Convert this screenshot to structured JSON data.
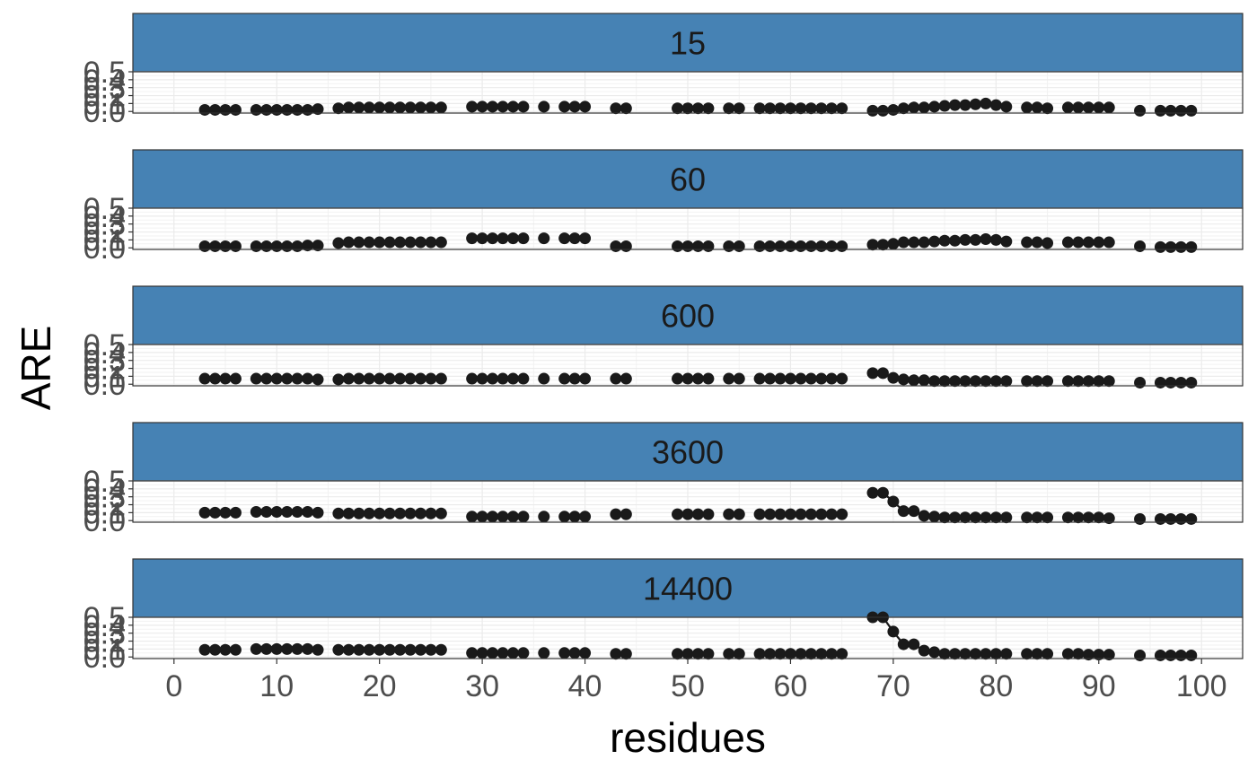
{
  "chart_data": {
    "type": "scatter",
    "xlabel": "residues",
    "ylabel": "ARE",
    "x_ticks": [
      0,
      10,
      20,
      30,
      40,
      50,
      60,
      70,
      80,
      90,
      100
    ],
    "y_ticks": [
      "0.0",
      "0.1",
      "0.2",
      "0.3",
      "0.4",
      "0.5"
    ],
    "y_ticks_values": [
      0.0,
      0.1,
      0.2,
      0.3,
      0.4,
      0.5
    ],
    "xlim": [
      -4,
      104
    ],
    "ylim": [
      -0.02,
      0.5
    ],
    "grid": true,
    "strip_fill": "#4682b4",
    "point_color": "#1a1a1a",
    "residues": [
      3,
      4,
      5,
      6,
      8,
      9,
      10,
      11,
      12,
      13,
      14,
      16,
      17,
      18,
      19,
      20,
      21,
      22,
      23,
      24,
      25,
      26,
      29,
      30,
      31,
      32,
      33,
      34,
      36,
      38,
      39,
      40,
      43,
      44,
      49,
      50,
      51,
      52,
      54,
      55,
      57,
      58,
      59,
      60,
      61,
      62,
      63,
      64,
      65,
      68,
      69,
      70,
      71,
      72,
      73,
      74,
      75,
      76,
      77,
      78,
      79,
      80,
      81,
      83,
      84,
      85,
      87,
      88,
      89,
      90,
      91,
      94,
      96,
      97,
      98,
      99
    ],
    "panels": [
      {
        "label": "15",
        "values": [
          0.02,
          0.02,
          0.02,
          0.02,
          0.02,
          0.02,
          0.02,
          0.02,
          0.02,
          0.02,
          0.03,
          0.04,
          0.05,
          0.05,
          0.05,
          0.05,
          0.05,
          0.05,
          0.05,
          0.05,
          0.05,
          0.05,
          0.06,
          0.06,
          0.06,
          0.06,
          0.06,
          0.06,
          0.06,
          0.06,
          0.06,
          0.06,
          0.04,
          0.04,
          0.04,
          0.04,
          0.04,
          0.04,
          0.04,
          0.04,
          0.04,
          0.04,
          0.04,
          0.04,
          0.04,
          0.04,
          0.04,
          0.04,
          0.04,
          0.01,
          0.01,
          0.02,
          0.04,
          0.05,
          0.05,
          0.06,
          0.07,
          0.08,
          0.08,
          0.09,
          0.1,
          0.08,
          0.06,
          0.05,
          0.05,
          0.04,
          0.05,
          0.05,
          0.05,
          0.05,
          0.05,
          0.01,
          0.01,
          0.01,
          0.01,
          0.01
        ]
      },
      {
        "label": "60",
        "values": [
          0.02,
          0.02,
          0.02,
          0.02,
          0.02,
          0.02,
          0.02,
          0.02,
          0.02,
          0.03,
          0.03,
          0.06,
          0.07,
          0.07,
          0.07,
          0.07,
          0.07,
          0.07,
          0.07,
          0.07,
          0.07,
          0.07,
          0.12,
          0.12,
          0.12,
          0.12,
          0.12,
          0.12,
          0.12,
          0.12,
          0.12,
          0.12,
          0.02,
          0.02,
          0.02,
          0.02,
          0.02,
          0.02,
          0.02,
          0.02,
          0.02,
          0.02,
          0.02,
          0.02,
          0.02,
          0.02,
          0.02,
          0.02,
          0.02,
          0.04,
          0.04,
          0.05,
          0.07,
          0.07,
          0.07,
          0.08,
          0.09,
          0.09,
          0.1,
          0.1,
          0.11,
          0.1,
          0.08,
          0.07,
          0.07,
          0.06,
          0.07,
          0.07,
          0.07,
          0.07,
          0.07,
          0.02,
          0.01,
          0.01,
          0.01,
          0.01
        ]
      },
      {
        "label": "600",
        "values": [
          0.07,
          0.07,
          0.07,
          0.07,
          0.07,
          0.07,
          0.07,
          0.07,
          0.07,
          0.07,
          0.06,
          0.06,
          0.07,
          0.07,
          0.07,
          0.07,
          0.07,
          0.07,
          0.07,
          0.07,
          0.07,
          0.07,
          0.07,
          0.07,
          0.07,
          0.07,
          0.07,
          0.07,
          0.07,
          0.07,
          0.07,
          0.07,
          0.07,
          0.07,
          0.07,
          0.07,
          0.07,
          0.07,
          0.07,
          0.07,
          0.07,
          0.07,
          0.07,
          0.07,
          0.07,
          0.07,
          0.07,
          0.07,
          0.07,
          0.14,
          0.14,
          0.08,
          0.06,
          0.05,
          0.05,
          0.04,
          0.04,
          0.04,
          0.04,
          0.04,
          0.04,
          0.04,
          0.04,
          0.04,
          0.04,
          0.04,
          0.04,
          0.04,
          0.04,
          0.04,
          0.04,
          0.02,
          0.02,
          0.02,
          0.02,
          0.02
        ]
      },
      {
        "label": "3600",
        "values": [
          0.1,
          0.1,
          0.1,
          0.1,
          0.11,
          0.11,
          0.11,
          0.11,
          0.11,
          0.11,
          0.1,
          0.09,
          0.09,
          0.09,
          0.09,
          0.09,
          0.09,
          0.09,
          0.09,
          0.09,
          0.09,
          0.09,
          0.05,
          0.05,
          0.05,
          0.05,
          0.05,
          0.05,
          0.05,
          0.05,
          0.05,
          0.05,
          0.08,
          0.08,
          0.08,
          0.08,
          0.08,
          0.08,
          0.08,
          0.08,
          0.08,
          0.08,
          0.08,
          0.08,
          0.08,
          0.08,
          0.08,
          0.08,
          0.08,
          0.35,
          0.35,
          0.24,
          0.12,
          0.12,
          0.06,
          0.05,
          0.04,
          0.04,
          0.04,
          0.04,
          0.04,
          0.04,
          0.04,
          0.04,
          0.04,
          0.04,
          0.04,
          0.04,
          0.04,
          0.04,
          0.03,
          0.02,
          0.02,
          0.02,
          0.02,
          0.02
        ]
      },
      {
        "label": "14400",
        "values": [
          0.09,
          0.09,
          0.09,
          0.09,
          0.1,
          0.1,
          0.1,
          0.1,
          0.1,
          0.1,
          0.09,
          0.09,
          0.09,
          0.09,
          0.09,
          0.09,
          0.09,
          0.09,
          0.09,
          0.09,
          0.09,
          0.09,
          0.05,
          0.05,
          0.05,
          0.05,
          0.05,
          0.05,
          0.05,
          0.05,
          0.05,
          0.05,
          0.04,
          0.04,
          0.04,
          0.04,
          0.04,
          0.04,
          0.04,
          0.04,
          0.04,
          0.04,
          0.04,
          0.04,
          0.04,
          0.04,
          0.04,
          0.04,
          0.04,
          0.5,
          0.5,
          0.32,
          0.16,
          0.16,
          0.08,
          0.06,
          0.04,
          0.04,
          0.04,
          0.04,
          0.04,
          0.04,
          0.04,
          0.04,
          0.04,
          0.04,
          0.04,
          0.04,
          0.03,
          0.03,
          0.03,
          0.02,
          0.02,
          0.02,
          0.02,
          0.02
        ]
      }
    ]
  }
}
